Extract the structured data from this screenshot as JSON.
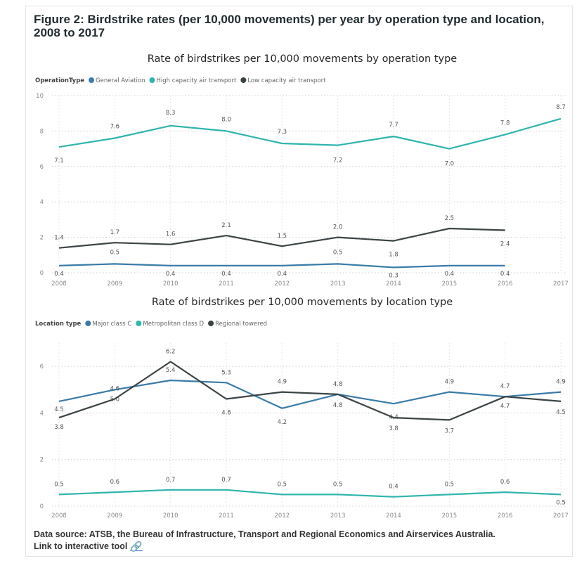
{
  "figure": {
    "title": "Figure 2: Birdstrike rates (per 10,000 movements) per year by operation type and location, 2008 to 2017",
    "source": "Data source: ATSB, the Bureau of Infrastructure, Transport and Regional Economics and Airservices Australia.",
    "link_text": "Link to interactive tool",
    "link_icon": "link-icon"
  },
  "chart_data": [
    {
      "type": "line",
      "title": "Rate of birdstrikes per 10,000 movements by operation type",
      "legend_title": "OperationType",
      "legend_position": "top-left",
      "grid": true,
      "x": [
        "2008",
        "2009",
        "2010",
        "2011",
        "2012",
        "2013",
        "2014",
        "2015",
        "2016",
        "2017"
      ],
      "ylim": [
        0,
        10
      ],
      "yticks": [
        "0",
        "2",
        "4",
        "6",
        "8",
        "10"
      ],
      "series": [
        {
          "name": "General Aviation",
          "color": "#3a7ba8",
          "values": [
            0.4,
            0.5,
            0.4,
            0.4,
            0.4,
            0.5,
            0.3,
            0.4,
            0.4,
            null
          ],
          "labels": [
            "0.4",
            "0.5",
            "0.4",
            "0.4",
            "0.4",
            "0.5",
            "0.3",
            "0.4",
            "0.4",
            ""
          ]
        },
        {
          "name": "High capacity air transport",
          "color": "#2fb5ad",
          "values": [
            7.1,
            7.6,
            8.3,
            8.0,
            7.3,
            7.2,
            7.7,
            7.0,
            7.8,
            8.7
          ],
          "labels": [
            "7.1",
            "7.6",
            "8.3",
            "8.0",
            "7.3",
            "7.2",
            "7.7",
            "7.0",
            "7.8",
            "8.7"
          ]
        },
        {
          "name": "Low capacity air transport",
          "color": "#3b4345",
          "values": [
            1.4,
            1.7,
            1.6,
            2.1,
            1.5,
            2.0,
            1.8,
            2.5,
            2.4,
            null
          ],
          "labels": [
            "1.4",
            "1.7",
            "1.6",
            "2.1",
            "1.5",
            "2.0",
            "1.8",
            "2.5",
            "2.4",
            ""
          ]
        }
      ]
    },
    {
      "type": "line",
      "title": "Rate of birdstrikes per 10,000 movements by location type",
      "legend_title": "Location type",
      "legend_position": "top-left",
      "grid": true,
      "x": [
        "2008",
        "2009",
        "2010",
        "2011",
        "2012",
        "2013",
        "2014",
        "2015",
        "2016",
        "2017"
      ],
      "ylim": [
        0,
        7
      ],
      "yticks": [
        "0",
        "2",
        "4",
        "6"
      ],
      "series": [
        {
          "name": "Major class C",
          "color": "#3a7ba8",
          "values": [
            4.5,
            5.0,
            5.4,
            5.3,
            4.2,
            4.8,
            4.4,
            4.9,
            4.7,
            4.9
          ],
          "labels": [
            "4.5",
            "5.0",
            "5.4",
            "5.3",
            "4.2",
            "4.8",
            "4.4",
            "4.9",
            "4.7",
            "4.9"
          ]
        },
        {
          "name": "Metropolitan class D",
          "color": "#2fb5ad",
          "values": [
            0.5,
            0.6,
            0.7,
            0.7,
            0.5,
            0.5,
            0.4,
            0.5,
            0.6,
            0.5
          ],
          "labels": [
            "0.5",
            "0.6",
            "0.7",
            "0.7",
            "0.5",
            "0.5",
            "0.4",
            "0.5",
            "0.6",
            "0.5"
          ]
        },
        {
          "name": "Regional towered",
          "color": "#3b4345",
          "values": [
            3.8,
            4.6,
            6.2,
            4.6,
            4.9,
            4.8,
            3.8,
            3.7,
            4.7,
            4.5
          ],
          "labels": [
            "3.8",
            "4.6",
            "6.2",
            "4.6",
            "4.9",
            "4.8",
            "3.8",
            "3.7",
            "4.7",
            "4.5"
          ]
        }
      ]
    }
  ]
}
